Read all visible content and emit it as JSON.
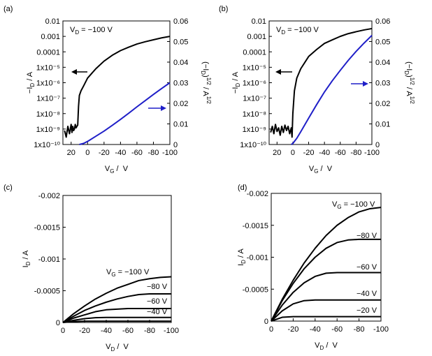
{
  "chart_data": [
    {
      "type": "line",
      "panel_label": "(a)",
      "annotation": [
        "V",
        "D",
        " = −100 V"
      ],
      "xlabel": [
        "V",
        "G",
        " /  V"
      ],
      "ylabel": [
        "−I",
        "D",
        " / A"
      ],
      "y2label": [
        "(−I",
        "D",
        ")",
        "1/2",
        " / A",
        "1/2"
      ],
      "xlim": [
        30,
        -100
      ],
      "xticks": [
        20,
        0,
        -20,
        -40,
        -60,
        -80,
        -100
      ],
      "ylog": true,
      "ylim": [
        1e-10,
        0.01
      ],
      "yticks": [
        {
          "value": 1e-10,
          "label": "1x10⁻¹⁰"
        },
        {
          "value": 1e-09,
          "label": "1x10⁻⁹"
        },
        {
          "value": 1e-08,
          "label": "1x10⁻⁸"
        },
        {
          "value": 1e-07,
          "label": "1x10⁻⁷"
        },
        {
          "value": 1e-06,
          "label": "1x10⁻⁶"
        },
        {
          "value": 1e-05,
          "label": "1x10⁻⁵"
        },
        0.0001,
        0.001,
        0.01
      ],
      "y2lim": [
        0,
        0.06
      ],
      "y2ticks": [
        0,
        0.01,
        0.02,
        0.03,
        0.04,
        0.05,
        0.06
      ],
      "series": [
        {
          "color": "#000000",
          "x": [
            28,
            26,
            24,
            22,
            20,
            19,
            18,
            17,
            16,
            15,
            14,
            13,
            12,
            11,
            10,
            8,
            5,
            0,
            -10,
            -20,
            -30,
            -40,
            -50,
            -60,
            -70,
            -80,
            -90,
            -100
          ],
          "values": [
            8e-10,
            3e-10,
            1.5e-09,
            5e-10,
            2e-09,
            6e-10,
            1.5e-09,
            8e-10,
            1e-09,
            2e-09,
            1.2e-09,
            1.5e-09,
            1.8e-09,
            3e-08,
            1.5e-07,
            3e-07,
            6e-07,
            2e-06,
            8e-06,
            2.5e-05,
            6e-05,
            0.00012,
            0.0002,
            0.00032,
            0.00045,
            0.0006,
            0.0008,
            0.001
          ]
        },
        {
          "color": "#1f1fc8",
          "axis": "y2",
          "x": [
            10,
            5,
            0,
            -10,
            -20,
            -30,
            -40,
            -50,
            -60,
            -70,
            -80,
            -90,
            -100
          ],
          "values": [
            0,
            0.0005,
            0.0015,
            0.004,
            0.0065,
            0.0093,
            0.0122,
            0.0152,
            0.0183,
            0.0213,
            0.0243,
            0.0272,
            0.03
          ]
        }
      ]
    },
    {
      "type": "line",
      "panel_label": "(b)",
      "annotation": [
        "V",
        "D",
        " = −100 V"
      ],
      "xlabel": [
        "V",
        "G",
        " /  V"
      ],
      "ylabel": [
        "−I",
        "D",
        " / A"
      ],
      "y2label": [
        "(−I",
        "D",
        ")",
        "1/2",
        " / A",
        "1/2"
      ],
      "xlim": [
        30,
        -100
      ],
      "xticks": [
        20,
        0,
        -20,
        -40,
        -60,
        -80,
        -100
      ],
      "ylog": true,
      "ylim": [
        1e-10,
        0.01
      ],
      "yticks": [
        {
          "value": 1e-10,
          "label": "1x10⁻¹⁰"
        },
        {
          "value": 1e-09,
          "label": "1x10⁻⁹"
        },
        {
          "value": 1e-08,
          "label": "1x10⁻⁸"
        },
        {
          "value": 1e-07,
          "label": "1x10⁻⁷"
        },
        {
          "value": 1e-06,
          "label": "1x10⁻⁶"
        },
        {
          "value": 1e-05,
          "label": "1x10⁻⁵"
        },
        0.0001,
        0.001,
        0.01
      ],
      "y2lim": [
        0,
        0.06
      ],
      "y2ticks": [
        0,
        0.01,
        0.02,
        0.03,
        0.04,
        0.05,
        0.06
      ],
      "series": [
        {
          "color": "#000000",
          "x": [
            28,
            26,
            24,
            22,
            20,
            18,
            16,
            14,
            12,
            10,
            8,
            6,
            4,
            2,
            1,
            0,
            -2,
            -5,
            -10,
            -20,
            -30,
            -40,
            -50,
            -60,
            -70,
            -80,
            -90,
            -100
          ],
          "values": [
            6e-10,
            1.5e-09,
            5e-10,
            2e-09,
            7e-10,
            1.2e-09,
            4e-10,
            1.5e-09,
            6e-10,
            1.8e-09,
            8e-10,
            1.5e-09,
            5e-10,
            1.2e-09,
            3e-10,
            1e-08,
            3e-07,
            2e-06,
            8e-06,
            5e-05,
            0.00014,
            0.00035,
            0.0006,
            0.001,
            0.0015,
            0.002,
            0.0026,
            0.0032
          ]
        },
        {
          "color": "#1f1fc8",
          "axis": "y2",
          "x": [
            2,
            0,
            -5,
            -10,
            -20,
            -30,
            -40,
            -50,
            -60,
            -70,
            -80,
            -90,
            -100
          ],
          "values": [
            0,
            0.0005,
            0.003,
            0.0062,
            0.0128,
            0.0193,
            0.0255,
            0.031,
            0.036,
            0.0408,
            0.0452,
            0.0492,
            0.053
          ]
        }
      ]
    },
    {
      "type": "line",
      "panel_label": "(c)",
      "xlabel": [
        "V",
        "D",
        " /  V"
      ],
      "ylabel": [
        "I",
        "D",
        " / A"
      ],
      "xlim": [
        0,
        -100
      ],
      "xticks": [
        0,
        -20,
        -40,
        -60,
        -80,
        -100
      ],
      "ylim": [
        0,
        -0.002
      ],
      "yticks": [
        0,
        -0.0005,
        -0.001,
        -0.0015,
        -0.002
      ],
      "label_prefix": [
        "V",
        "G",
        " = "
      ],
      "x": [
        0,
        -10,
        -20,
        -30,
        -40,
        -50,
        -60,
        -70,
        -80,
        -90,
        -100
      ],
      "series": [
        {
          "name": "−100 V",
          "color": "#000000",
          "values": [
            0,
            -0.00014,
            -0.00026,
            -0.00037,
            -0.00046,
            -0.00054,
            -0.0006,
            -0.00066,
            -0.00069,
            -0.00071,
            -0.00072
          ]
        },
        {
          "name": "−80 V",
          "color": "#000000",
          "values": [
            0,
            -0.0001,
            -0.00019,
            -0.00026,
            -0.00032,
            -0.00037,
            -0.00041,
            -0.00044,
            -0.00045,
            -0.00045,
            -0.00045
          ]
        },
        {
          "name": "−60 V",
          "color": "#000000",
          "values": [
            0,
            -7e-05,
            -0.00012,
            -0.00017,
            -0.0002,
            -0.00021,
            -0.00022,
            -0.00022,
            -0.00022,
            -0.00022,
            -0.00022
          ]
        },
        {
          "name": "−40 V",
          "color": "#000000",
          "values": [
            0,
            -3.5e-05,
            -6e-05,
            -7.5e-05,
            -8e-05,
            -8e-05,
            -8e-05,
            -8e-05,
            -8e-05,
            -8e-05,
            -8e-05
          ]
        },
        {
          "name": null,
          "color": "#000000",
          "values": [
            0,
            -1.5e-05,
            -2e-05,
            -2e-05,
            -2e-05,
            -2e-05,
            -2e-05,
            -2e-05,
            -2e-05,
            -2e-05,
            -2e-05
          ]
        }
      ]
    },
    {
      "type": "line",
      "panel_label": "(d)",
      "xlabel": [
        "V",
        "D",
        " /  V"
      ],
      "ylabel": [
        "I",
        "D",
        " / A"
      ],
      "xlim": [
        0,
        -100
      ],
      "xticks": [
        0,
        -20,
        -40,
        -60,
        -80,
        -100
      ],
      "ylim": [
        0,
        -0.002
      ],
      "yticks": [
        0,
        -0.0005,
        -0.001,
        -0.0015,
        -0.002
      ],
      "label_prefix": [
        "V",
        "G",
        " = "
      ],
      "x": [
        0,
        -10,
        -20,
        -30,
        -40,
        -50,
        -60,
        -70,
        -80,
        -90,
        -100
      ],
      "series": [
        {
          "name": "−100 V",
          "color": "#000000",
          "values": [
            0,
            -0.00034,
            -0.00064,
            -0.00091,
            -0.00114,
            -0.00134,
            -0.0015,
            -0.00162,
            -0.00171,
            -0.00176,
            -0.00178
          ]
        },
        {
          "name": "−80 V",
          "color": "#000000",
          "values": [
            0,
            -0.00032,
            -0.00059,
            -0.00082,
            -0.001,
            -0.00114,
            -0.00123,
            -0.00127,
            -0.00128,
            -0.00128,
            -0.00128
          ]
        },
        {
          "name": "−60 V",
          "color": "#000000",
          "values": [
            0,
            -0.00025,
            -0.00045,
            -0.0006,
            -0.0007,
            -0.00075,
            -0.00076,
            -0.00076,
            -0.00076,
            -0.00076,
            -0.00076
          ]
        },
        {
          "name": "−40 V",
          "color": "#000000",
          "values": [
            0,
            -0.00016,
            -0.00027,
            -0.00032,
            -0.00033,
            -0.00033,
            -0.00033,
            -0.00033,
            -0.00033,
            -0.00033,
            -0.00033
          ]
        },
        {
          "name": "−20 V",
          "color": "#000000",
          "values": [
            0,
            -6e-05,
            -7e-05,
            -7e-05,
            -7e-05,
            -7e-05,
            -7e-05,
            -7e-05,
            -7e-05,
            -7e-05,
            -7e-05
          ]
        }
      ]
    }
  ]
}
